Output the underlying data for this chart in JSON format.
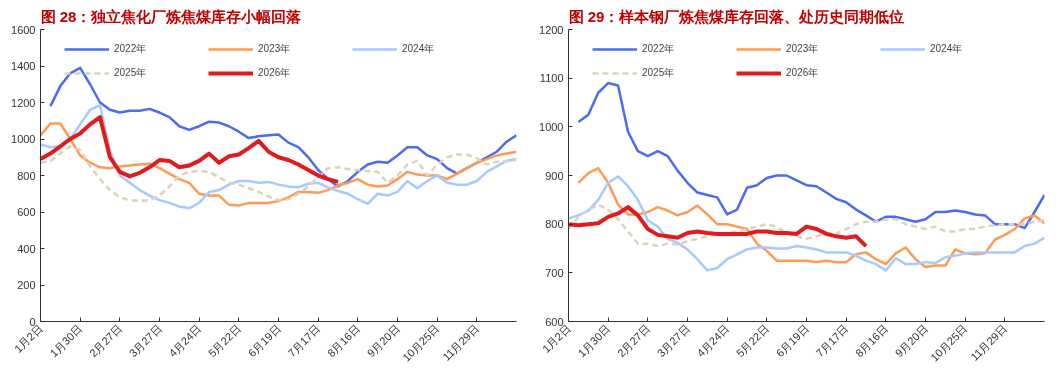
{
  "chart_data": [
    {
      "type": "line",
      "title": "图 28：独立焦化厂炼焦煤库存小幅回落",
      "categories": [
        "1月2日",
        null,
        null,
        null,
        "1月30日",
        null,
        null,
        null,
        "2月27日",
        null,
        null,
        null,
        "3月27日",
        null,
        null,
        null,
        "4月24日",
        null,
        null,
        null,
        "5月22日",
        null,
        null,
        null,
        "6月19日",
        null,
        null,
        null,
        "7月17日",
        null,
        null,
        null,
        "8月16日",
        null,
        null,
        null,
        "9月20日",
        null,
        null,
        null,
        "10月25日",
        null,
        null,
        null,
        "11月29日",
        null,
        null,
        null,
        null
      ],
      "ylim": [
        0,
        1600
      ],
      "yticks": [
        0,
        200,
        400,
        600,
        800,
        1000,
        1200,
        1400,
        1600
      ],
      "grid": false,
      "legend": "top",
      "series": [
        {
          "name": "2022年",
          "color": "#4a6cf2",
          "line_style": "solid",
          "values": [
            null,
            1180,
            1290,
            1360,
            1390,
            1300,
            1200,
            1160,
            1145,
            1155,
            1155,
            1165,
            1145,
            1120,
            1070,
            1050,
            1070,
            1095,
            1090,
            1070,
            1040,
            1005,
            1015,
            1020,
            1025,
            980,
            955,
            900,
            830,
            780,
            740,
            770,
            820,
            860,
            875,
            870,
            910,
            955,
            955,
            910,
            890,
            840,
            810,
            840,
            870,
            900,
            930,
            985,
            1020
          ]
        },
        {
          "name": "2023年",
          "color": "#ff9a55",
          "line_style": "solid",
          "values": [
            1020,
            1085,
            1085,
            1000,
            910,
            870,
            845,
            840,
            850,
            855,
            860,
            865,
            840,
            810,
            780,
            760,
            700,
            690,
            690,
            640,
            635,
            650,
            650,
            650,
            660,
            680,
            710,
            710,
            705,
            720,
            745,
            760,
            780,
            750,
            740,
            745,
            780,
            820,
            805,
            800,
            800,
            780,
            810,
            840,
            870,
            890,
            910,
            920,
            930
          ]
        },
        {
          "name": "2024年",
          "color": "#a6c9ff",
          "line_style": "solid",
          "values": [
            970,
            955,
            960,
            1000,
            1080,
            1160,
            1185,
            940,
            800,
            760,
            720,
            690,
            665,
            650,
            630,
            620,
            650,
            710,
            720,
            750,
            770,
            770,
            760,
            765,
            750,
            740,
            735,
            755,
            760,
            735,
            715,
            700,
            670,
            645,
            700,
            690,
            710,
            770,
            730,
            770,
            800,
            760,
            750,
            750,
            770,
            820,
            850,
            880,
            890
          ]
        },
        {
          "name": "2025年",
          "color": "#ddd3bb",
          "line_style": "dashed",
          "values": [
            870,
            880,
            920,
            960,
            940,
            850,
            780,
            720,
            680,
            665,
            660,
            665,
            690,
            740,
            800,
            820,
            825,
            820,
            790,
            760,
            750,
            730,
            710,
            685,
            665,
            670,
            700,
            740,
            790,
            840,
            845,
            835,
            830,
            825,
            820,
            760,
            800,
            860,
            880,
            800,
            860,
            900,
            915,
            915,
            895,
            860,
            875,
            880,
            885
          ]
        },
        {
          "name": "2026年",
          "color": "#e01b1e",
          "line_style": "solid",
          "values": [
            890,
            920,
            960,
            1000,
            1030,
            1080,
            1120,
            900,
            820,
            795,
            815,
            845,
            885,
            880,
            845,
            855,
            880,
            920,
            870,
            905,
            915,
            950,
            990,
            930,
            900,
            885,
            860,
            830,
            800,
            780,
            765,
            null,
            null,
            null,
            null,
            null,
            null,
            null,
            null,
            null,
            null,
            null,
            null,
            null,
            null,
            null,
            null,
            null,
            null
          ]
        }
      ]
    },
    {
      "type": "line",
      "title": "图 29：样本钢厂炼焦煤库存回落、处历史同期低位",
      "categories": [
        "1月2日",
        null,
        null,
        null,
        "1月30日",
        null,
        null,
        null,
        "2月27日",
        null,
        null,
        null,
        "3月27日",
        null,
        null,
        null,
        "4月24日",
        null,
        null,
        null,
        "5月22日",
        null,
        null,
        null,
        "6月19日",
        null,
        null,
        null,
        "7月17日",
        null,
        null,
        null,
        "8月16日",
        null,
        null,
        null,
        "9月20日",
        null,
        null,
        null,
        "10月25日",
        null,
        null,
        null,
        "11月29日",
        null,
        null,
        null,
        null
      ],
      "ylim": [
        600,
        1200
      ],
      "yticks": [
        600,
        700,
        800,
        900,
        1000,
        1100,
        1200
      ],
      "grid": false,
      "legend": "top",
      "series": [
        {
          "name": "2022年",
          "color": "#4a6cf2",
          "line_style": "solid",
          "values": [
            null,
            1010,
            1025,
            1070,
            1090,
            1085,
            990,
            950,
            940,
            950,
            940,
            910,
            885,
            865,
            860,
            855,
            820,
            830,
            875,
            880,
            895,
            900,
            900,
            890,
            880,
            878,
            865,
            852,
            845,
            830,
            818,
            805,
            815,
            815,
            810,
            805,
            810,
            825,
            825,
            828,
            825,
            820,
            818,
            800,
            800,
            800,
            792,
            825,
            860
          ]
        },
        {
          "name": "2023年",
          "color": "#ff9a55",
          "line_style": "solid",
          "values": [
            null,
            885,
            905,
            915,
            885,
            840,
            820,
            820,
            825,
            835,
            828,
            818,
            825,
            838,
            820,
            800,
            800,
            795,
            790,
            760,
            745,
            725,
            725,
            725,
            725,
            722,
            725,
            722,
            722,
            738,
            742,
            728,
            718,
            740,
            752,
            728,
            712,
            715,
            715,
            748,
            740,
            738,
            740,
            768,
            778,
            790,
            812,
            818,
            802
          ]
        },
        {
          "name": "2024年",
          "color": "#a6c9ff",
          "line_style": "solid",
          "values": [
            812,
            818,
            828,
            850,
            885,
            898,
            878,
            850,
            808,
            795,
            770,
            762,
            748,
            728,
            705,
            710,
            728,
            738,
            748,
            752,
            752,
            750,
            750,
            755,
            752,
            748,
            742,
            742,
            742,
            735,
            725,
            718,
            705,
            730,
            718,
            718,
            722,
            720,
            732,
            735,
            740,
            742,
            742,
            742,
            742,
            742,
            755,
            760,
            772
          ]
        },
        {
          "name": "2025年",
          "color": "#ddd3bb",
          "line_style": "dashed",
          "values": [
            790,
            815,
            830,
            840,
            830,
            810,
            785,
            760,
            760,
            755,
            760,
            758,
            765,
            770,
            775,
            780,
            782,
            785,
            790,
            795,
            800,
            795,
            780,
            775,
            770,
            775,
            782,
            780,
            790,
            800,
            805,
            805,
            810,
            810,
            800,
            795,
            790,
            795,
            785,
            785,
            790,
            790,
            795,
            798,
            800,
            800,
            800,
            805,
            808
          ]
        },
        {
          "name": "2026年",
          "color": "#e01b1e",
          "line_style": "solid",
          "values": [
            800,
            798,
            800,
            802,
            815,
            822,
            835,
            818,
            790,
            778,
            775,
            772,
            782,
            785,
            782,
            780,
            780,
            780,
            780,
            785,
            785,
            782,
            782,
            780,
            795,
            790,
            780,
            775,
            772,
            775,
            755,
            null,
            null,
            null,
            null,
            null,
            null,
            null,
            null,
            null,
            null,
            null,
            null,
            null,
            null,
            null,
            null,
            null,
            null
          ]
        }
      ]
    }
  ]
}
